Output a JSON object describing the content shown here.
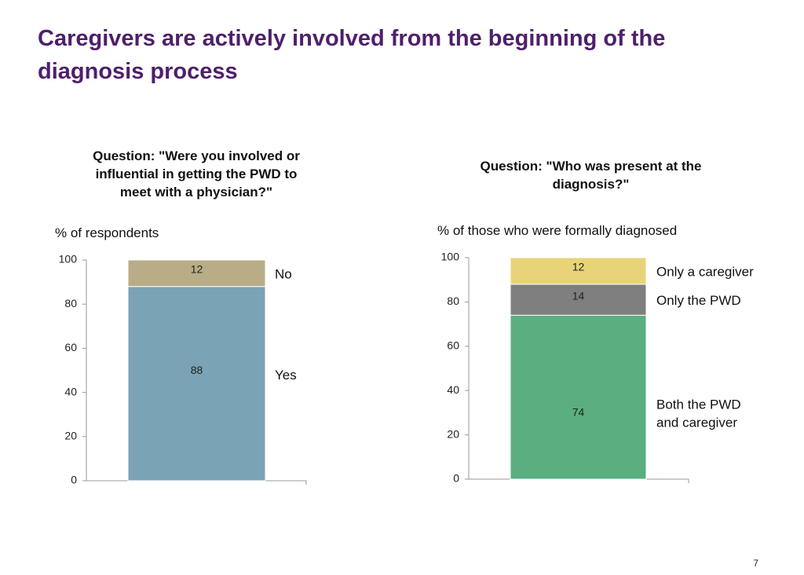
{
  "title_line1": "Caregivers are actively involved from the beginning of the",
  "title_line2": "diagnosis process",
  "page_number": "7",
  "chart_data": [
    {
      "type": "bar",
      "stacked": true,
      "title_lines": [
        "Question: \"Were you involved or",
        "influential in getting the PWD to",
        "meet with a physician?\""
      ],
      "ylabel": "% of respondents",
      "ylim": [
        0,
        100
      ],
      "yticks": [
        0,
        20,
        40,
        60,
        80,
        100
      ],
      "series": [
        {
          "name": "Yes",
          "value": 88,
          "color": "#7aa3b5",
          "label_lines": [
            "Yes"
          ]
        },
        {
          "name": "No",
          "value": 12,
          "color": "#b8ad86",
          "label_lines": [
            "No"
          ]
        }
      ]
    },
    {
      "type": "bar",
      "stacked": true,
      "title_lines": [
        "Question: \"Who was present at the",
        "diagnosis?\""
      ],
      "ylabel": "% of those who  were formally diagnosed",
      "ylim": [
        0,
        100
      ],
      "yticks": [
        0,
        20,
        40,
        60,
        80,
        100
      ],
      "series": [
        {
          "name": "Both the PWD and caregiver",
          "value": 74,
          "color": "#5aae7f",
          "label_lines": [
            "Both the PWD",
            "and caregiver"
          ]
        },
        {
          "name": "Only the PWD",
          "value": 14,
          "color": "#7f7f7f",
          "label_lines": [
            "Only the PWD"
          ]
        },
        {
          "name": "Only a caregiver",
          "value": 12,
          "color": "#e8d477",
          "label_lines": [
            "Only a caregiver"
          ]
        }
      ]
    }
  ]
}
